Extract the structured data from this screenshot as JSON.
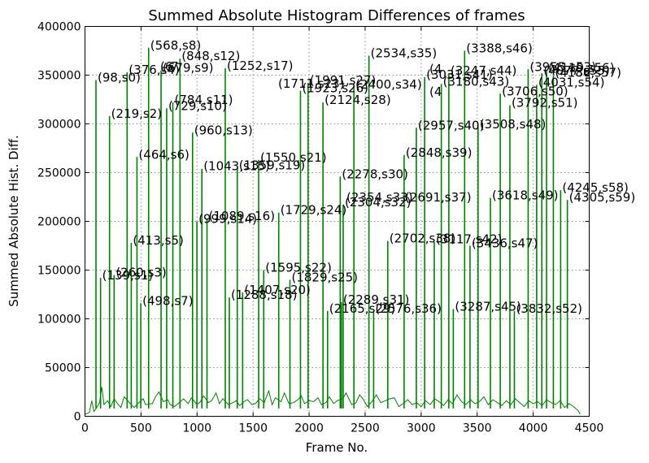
{
  "chart_data": {
    "type": "line",
    "title": "Summed Absolute Histogram Differences of frames",
    "xlabel": "Frame No.",
    "ylabel": "Summed Absolute Hist. Diff.",
    "xlim": [
      0,
      4500
    ],
    "ylim": [
      0,
      400000
    ],
    "x_ticks": [
      0,
      500,
      1000,
      1500,
      2000,
      2500,
      3000,
      3500,
      4000,
      4500
    ],
    "y_ticks": [
      0,
      50000,
      100000,
      150000,
      200000,
      250000,
      300000,
      350000,
      400000
    ],
    "grid": true,
    "line_color": "#008000",
    "baseline": {
      "x": [
        0,
        40,
        60,
        80,
        100,
        130,
        150,
        170,
        200,
        230,
        260,
        290,
        320,
        350,
        390,
        420,
        440,
        480,
        520,
        540,
        600,
        630,
        660,
        700,
        740,
        760,
        800,
        840,
        880,
        920,
        950,
        1000,
        1030,
        1060,
        1100,
        1130,
        1170,
        1200,
        1230,
        1280,
        1320,
        1350,
        1380,
        1420,
        1450,
        1490,
        1520,
        1560,
        1600,
        1640,
        1670,
        1700,
        1750,
        1780,
        1820,
        1860,
        1900,
        1930,
        1960,
        2000,
        2040,
        2080,
        2110,
        2150,
        2180,
        2220,
        2250,
        2300,
        2330,
        2380,
        2420,
        2450,
        2480,
        2520,
        2560,
        2600,
        2640,
        2680,
        2720,
        2760,
        2800,
        2840,
        2880,
        2920,
        2960,
        3000,
        3040,
        3080,
        3120,
        3160,
        3200,
        3240,
        3280,
        3320,
        3360,
        3400,
        3440,
        3480,
        3520,
        3560,
        3600,
        3640,
        3680,
        3720,
        3760,
        3800,
        3840,
        3880,
        3920,
        3960,
        4000,
        4040,
        4080,
        4120,
        4160,
        4200,
        4240,
        4280,
        4320,
        4360,
        4400,
        4420
      ],
      "y": [
        2000,
        4000,
        16000,
        5000,
        8000,
        14000,
        30000,
        12000,
        16000,
        10000,
        18000,
        13000,
        9000,
        20000,
        15000,
        11000,
        9000,
        14000,
        18000,
        12000,
        13000,
        20000,
        25000,
        15000,
        17000,
        12000,
        10000,
        14000,
        18000,
        13000,
        19000,
        12000,
        15000,
        21000,
        14000,
        16000,
        24000,
        13000,
        18000,
        12000,
        14000,
        16000,
        11000,
        15000,
        17000,
        12000,
        13000,
        18000,
        14000,
        26000,
        12000,
        19000,
        15000,
        24000,
        13000,
        14000,
        17000,
        21000,
        13000,
        16000,
        15000,
        19000,
        12000,
        14000,
        20000,
        13000,
        16000,
        18000,
        24000,
        12000,
        14000,
        22000,
        18000,
        10000,
        15000,
        22000,
        14000,
        16000,
        18000,
        19000,
        10000,
        13000,
        17000,
        12000,
        14000,
        10000,
        16000,
        12000,
        18000,
        15000,
        11000,
        17000,
        13000,
        22000,
        15000,
        12000,
        17000,
        13000,
        15000,
        20000,
        12000,
        17000,
        14000,
        11000,
        16000,
        12000,
        18000,
        14000,
        10000,
        16000,
        13000,
        15000,
        11000,
        17000,
        14000,
        12000,
        16000,
        9000,
        13000,
        10000,
        6000,
        2000
      ]
    },
    "peaks": [
      {
        "frame": 98,
        "shot": "s0",
        "label": "(98,s0)",
        "value": 345000
      },
      {
        "frame": 139,
        "shot": "s1",
        "label": "(139,s1)",
        "value": 142000
      },
      {
        "frame": 219,
        "shot": "s2",
        "label": "(219,s2)",
        "value": 308000
      },
      {
        "frame": 260,
        "shot": "s3",
        "label": "(260,s3)",
        "value": 145000
      },
      {
        "frame": 376,
        "shot": "s4",
        "label": "(376,s4)",
        "value": 353000
      },
      {
        "frame": 413,
        "shot": "s5",
        "label": "(413,s5)",
        "value": 178000
      },
      {
        "frame": 464,
        "shot": "s6",
        "label": "(464,s6)",
        "value": 266000
      },
      {
        "frame": 498,
        "shot": "s7",
        "label": "(498,s7)",
        "value": 116000
      },
      {
        "frame": 568,
        "shot": "s8",
        "label": "(568,s8)",
        "value": 378000
      },
      {
        "frame": 679,
        "shot": "s9",
        "label": "(679,s9)",
        "value": 355000
      },
      {
        "frame": 729,
        "shot": "s10",
        "label": "(729,s10)",
        "value": 316000
      },
      {
        "frame": 784,
        "shot": "s11",
        "label": "(784,s11)",
        "value": 322000
      },
      {
        "frame": 848,
        "shot": "s12",
        "label": "(848,s12)",
        "value": 367000
      },
      {
        "frame": 960,
        "shot": "s13",
        "label": "(960,s13)",
        "value": 291000
      },
      {
        "frame": 999,
        "shot": "s14",
        "label": "(999,s14)",
        "value": 200000
      },
      {
        "frame": 1043,
        "shot": "s15",
        "label": "(1043,s15)",
        "value": 254000
      },
      {
        "frame": 1089,
        "shot": "s16",
        "label": "(1089,s16)",
        "value": 203000
      },
      {
        "frame": 1252,
        "shot": "s17",
        "label": "(1252,s17)",
        "value": 357000
      },
      {
        "frame": 1288,
        "shot": "s18",
        "label": "(1288,s18)",
        "value": 122000
      },
      {
        "frame": 1359,
        "shot": "s19",
        "label": "(1359,s19)",
        "value": 255000
      },
      {
        "frame": 1407,
        "shot": "s20",
        "label": "(1407,s20)",
        "value": 127000
      },
      {
        "frame": 1550,
        "shot": "s21",
        "label": "(1550,s21)",
        "value": 263000
      },
      {
        "frame": 1595,
        "shot": "s22",
        "label": "(1595,s22)",
        "value": 150000
      },
      {
        "frame": 1729,
        "shot": "s24",
        "label": "(1729,s24)",
        "value": 209000
      },
      {
        "frame": 1829,
        "shot": "s25",
        "label": "(1829,s25)",
        "value": 140000
      },
      {
        "frame": 1923,
        "shot": "s26",
        "label": "(1923,s26)",
        "value": 334000
      },
      {
        "frame": 1991,
        "shot": "s27",
        "label": "(1991,s27)",
        "value": 342000
      },
      {
        "frame": 2124,
        "shot": "s28",
        "label": "(2124,s28)",
        "value": 322000
      },
      {
        "frame": 2165,
        "shot": "s29",
        "label": "(2165,s29)",
        "value": 108000
      },
      {
        "frame": 2278,
        "shot": "s30",
        "label": "(2278,s30)",
        "value": 246000
      },
      {
        "frame": 2289,
        "shot": "s31",
        "label": "(2289,s31)",
        "value": 117000
      },
      {
        "frame": 2304,
        "shot": "s32",
        "label": "(2304,s32)",
        "value": 217000
      },
      {
        "frame": 2400,
        "shot": "s34",
        "label": "(2400,s34)",
        "value": 338000
      },
      {
        "frame": 2534,
        "shot": "s35",
        "label": "(2534,s35)",
        "value": 370000
      },
      {
        "frame": 2576,
        "shot": "s36",
        "label": "(2576,s36)",
        "value": 108000
      },
      {
        "frame": 2702,
        "shot": "s38",
        "label": "(2702,s38)",
        "value": 180000
      },
      {
        "frame": 2848,
        "shot": "s39",
        "label": "(2848,s39)",
        "value": 268000
      },
      {
        "frame": 2957,
        "shot": "s40",
        "label": "(2957,s40)",
        "value": 296000
      },
      {
        "frame": 3031,
        "shot": "s41",
        "label": "(3031,s41)",
        "value": 348000
      },
      {
        "frame": 3117,
        "shot": "s42",
        "label": "(3117,s42)",
        "value": 179000
      },
      {
        "frame": 3180,
        "shot": "s43",
        "label": "(3180,s43)",
        "value": 341000
      },
      {
        "frame": 3247,
        "shot": "s44",
        "label": "(3247,s44)",
        "value": 352000
      },
      {
        "frame": 3287,
        "shot": "s45",
        "label": "(3287,s45)",
        "value": 110000
      },
      {
        "frame": 3388,
        "shot": "s46",
        "label": "(3388,s46)",
        "value": 375000
      },
      {
        "frame": 3436,
        "shot": "s47",
        "label": "(3436,s47)",
        "value": 175000
      },
      {
        "frame": 3508,
        "shot": "s48",
        "label": "(3508,s48)",
        "value": 297000
      },
      {
        "frame": 3618,
        "shot": "s49",
        "label": "(3618,s49)",
        "value": 224000
      },
      {
        "frame": 3706,
        "shot": "s50",
        "label": "(3706,s50)",
        "value": 331000
      },
      {
        "frame": 3792,
        "shot": "s51",
        "label": "(3792,s51)",
        "value": 319000
      },
      {
        "frame": 3832,
        "shot": "s52",
        "label": "(3832,s52)",
        "value": 108000
      },
      {
        "frame": 3955,
        "shot": "s53",
        "label": "(3955,s53)",
        "value": 356000
      },
      {
        "frame": 4031,
        "shot": "s54",
        "label": "(4031,s54)",
        "value": 340000
      },
      {
        "frame": 4077,
        "shot": "s55",
        "label": "(4077,s55)",
        "value": 352000
      },
      {
        "frame": 4119,
        "shot": "s56",
        "label": "(4119,s56)",
        "value": 355000
      },
      {
        "frame": 4180,
        "shot": "s57",
        "label": "(4180,s57)",
        "value": 350000
      },
      {
        "frame": 4245,
        "shot": "s58",
        "label": "(4245,s58)",
        "value": 232000
      },
      {
        "frame": 4305,
        "shot": "s59",
        "label": "(4305,s59)",
        "value": 222000
      }
    ],
    "overlap_labels": [
      "(1711,s23)",
      "(2354,s33)",
      "(2691,s37)"
    ],
    "annotation_fragments": [
      "(6",
      "7",
      "(4",
      "(4"
    ]
  }
}
